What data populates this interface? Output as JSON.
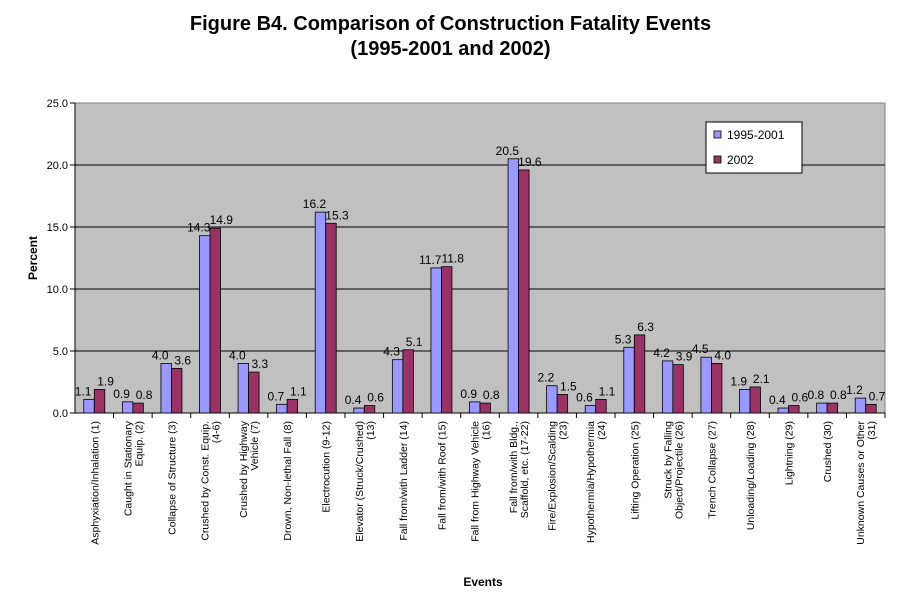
{
  "chart_data": {
    "type": "bar",
    "title_line1": "Figure B4.  Comparison of Construction Fatality Events",
    "title_line2": "(1995-2001 and 2002)",
    "xlabel": "Events",
    "ylabel": "Percent",
    "ylim": [
      0,
      25
    ],
    "yticks": [
      "0.0",
      "5.0",
      "10.0",
      "15.0",
      "20.0",
      "25.0"
    ],
    "grid": true,
    "legend_position": "top-right",
    "plot_background": "#c0c0c0",
    "categories": [
      [
        "Asphyxiation/Inhalation (1)"
      ],
      [
        "Caught in Stationary",
        "Equip. (2)"
      ],
      [
        "Collapse of Structure (3)"
      ],
      [
        "Crushed by Const. Equip.",
        "(4-6)"
      ],
      [
        "Crushed by Highway",
        "Vehicle (7)"
      ],
      [
        "Drown, Non-lethal Fall (8)"
      ],
      [
        "Electrocution (9-12)"
      ],
      [
        "Elevator (Struck/Crushed)",
        "(13)"
      ],
      [
        "Fall from/with Ladder (14)"
      ],
      [
        "Fall from/with Roof (15)"
      ],
      [
        "Fall from Highway Vehicle",
        "(16)"
      ],
      [
        "Fall from/with Bldg.,",
        "Scaffold, etc. (17-22)"
      ],
      [
        "Fire/Explosion/Scalding",
        "(23)"
      ],
      [
        "Hypothermia/Hypothermia",
        "(24)"
      ],
      [
        "Lifting Operation (25)"
      ],
      [
        "Struck by Falling",
        "Object/Projectile (26)"
      ],
      [
        "Trench Collapse (27)"
      ],
      [
        "Unloading/Loading (28)"
      ],
      [
        "Lightning (29)"
      ],
      [
        "Crushed (30)"
      ],
      [
        "Unknown Causes or Other",
        "(31)"
      ]
    ],
    "series": [
      {
        "name": "1995-2001",
        "color": "#9999ff",
        "values": [
          1.1,
          0.9,
          4.0,
          14.3,
          4.0,
          0.7,
          16.2,
          0.4,
          4.3,
          11.7,
          0.9,
          20.5,
          2.2,
          0.6,
          5.3,
          4.2,
          4.5,
          1.9,
          0.4,
          0.8,
          1.2
        ],
        "labels": [
          "1.1",
          "0.9",
          "4.0",
          "14.3",
          "4.0",
          "0.7",
          "16.2",
          "0.4",
          "4.3",
          "11.7",
          "0.9",
          "20.5",
          "2.2",
          "0.6",
          "5.3",
          "4.2",
          "4.5",
          "1.9",
          "0.4",
          "0.8",
          "1.2"
        ]
      },
      {
        "name": "2002",
        "color": "#993366",
        "values": [
          1.9,
          0.8,
          3.6,
          14.9,
          3.3,
          1.1,
          15.3,
          0.6,
          5.1,
          11.8,
          0.8,
          19.6,
          1.5,
          1.1,
          6.3,
          3.9,
          4.0,
          2.1,
          0.6,
          0.8,
          0.7
        ],
        "labels": [
          "1.9",
          "0.8",
          "3.6",
          "14.9",
          "3.3",
          "1.1",
          "15.3",
          "0.6",
          "5.1",
          "11.8",
          "0.8",
          "19.6",
          "1.5",
          "1.1",
          "6.3",
          "3.9",
          "4.0",
          "2.1",
          "0.6",
          "0.8",
          "0.7"
        ]
      }
    ]
  }
}
